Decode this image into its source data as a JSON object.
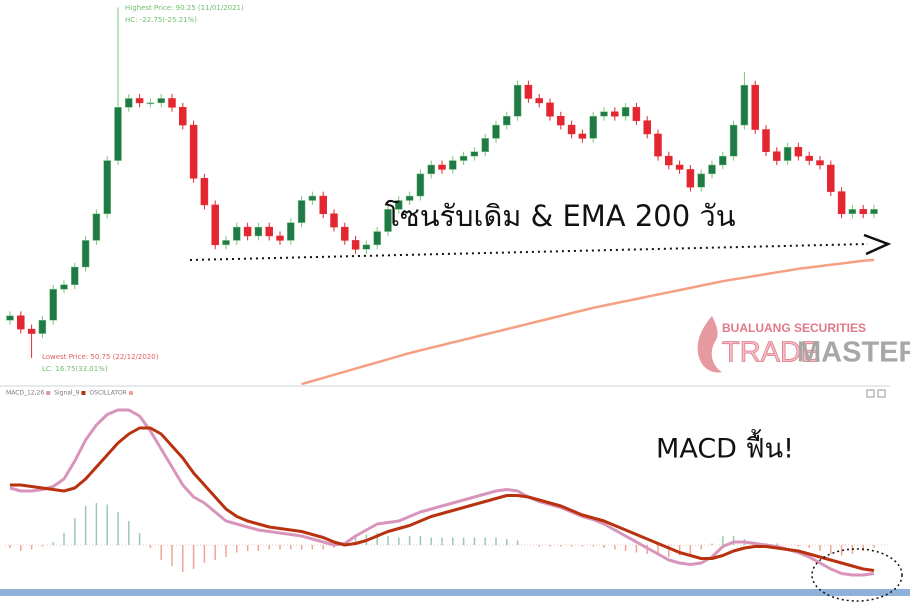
{
  "chart_data": [
    {
      "type": "candlestick",
      "open": [
        55.0,
        55.5,
        54.0,
        53.5,
        55.0,
        58.5,
        59.0,
        61.0,
        64.0,
        67.0,
        73.0,
        79.0,
        80.0,
        79.5,
        79.5,
        80.0,
        79.0,
        77.0,
        71.0,
        68.0,
        63.5,
        64.0,
        65.5,
        64.5,
        65.5,
        64.5,
        64.0,
        66.0,
        68.5,
        69.0,
        67.0,
        65.5,
        64.0,
        63.0,
        63.5,
        65.0,
        67.5,
        68.5,
        69.0,
        71.5,
        72.5,
        72.0,
        73.0,
        73.5,
        74.0,
        75.5,
        77.0,
        78.0,
        81.5,
        80.0,
        79.5,
        78.0,
        77.0,
        76.0,
        75.5,
        78.0,
        78.5,
        78.0,
        79.0,
        77.5,
        76.0,
        73.5,
        72.5,
        72.0,
        70.0,
        71.5,
        72.5,
        73.5,
        77.0,
        81.5,
        76.5,
        74.0,
        73.0,
        74.5,
        73.5,
        73.0,
        72.5,
        69.5,
        67.0,
        67.5,
        67.0
      ],
      "high": [
        56.0,
        56.0,
        54.5,
        55.5,
        59.0,
        59.5,
        61.5,
        64.5,
        67.5,
        73.5,
        90.25,
        80.5,
        80.5,
        80.0,
        80.5,
        80.5,
        79.5,
        77.5,
        71.5,
        68.5,
        64.5,
        66.0,
        66.0,
        66.0,
        66.0,
        65.0,
        66.5,
        69.0,
        69.5,
        69.5,
        67.5,
        66.0,
        64.5,
        64.0,
        65.5,
        68.0,
        69.0,
        69.5,
        72.0,
        73.0,
        73.0,
        73.5,
        74.0,
        74.5,
        76.0,
        77.5,
        78.5,
        82.0,
        82.0,
        80.5,
        80.0,
        78.5,
        77.5,
        76.5,
        78.5,
        79.0,
        79.0,
        79.5,
        79.5,
        78.0,
        76.5,
        74.0,
        73.0,
        72.5,
        72.0,
        73.0,
        74.0,
        77.5,
        83.0,
        82.0,
        77.0,
        74.5,
        75.0,
        75.0,
        74.0,
        73.5,
        73.0,
        70.0,
        68.0,
        68.0,
        68.0
      ],
      "low": [
        54.5,
        53.5,
        50.75,
        53.0,
        54.5,
        58.0,
        58.5,
        60.5,
        63.5,
        66.5,
        72.5,
        78.5,
        79.0,
        79.0,
        79.0,
        78.5,
        76.5,
        70.5,
        67.5,
        63.0,
        63.0,
        63.5,
        64.0,
        64.0,
        64.0,
        63.5,
        63.5,
        65.5,
        68.0,
        66.5,
        65.0,
        63.5,
        62.5,
        62.5,
        63.0,
        64.5,
        67.0,
        68.0,
        68.5,
        71.0,
        71.5,
        71.5,
        72.5,
        73.0,
        73.5,
        75.0,
        76.5,
        77.5,
        79.5,
        79.0,
        77.5,
        76.5,
        75.5,
        75.0,
        75.0,
        77.5,
        77.5,
        77.5,
        77.0,
        75.5,
        73.0,
        72.0,
        71.5,
        69.5,
        69.5,
        71.0,
        72.0,
        73.0,
        76.5,
        76.0,
        73.5,
        72.5,
        72.5,
        73.0,
        72.5,
        72.0,
        69.0,
        66.5,
        66.5,
        66.5,
        66.5
      ],
      "close": [
        55.5,
        54.0,
        53.5,
        55.0,
        58.5,
        59.0,
        61.0,
        64.0,
        67.0,
        73.0,
        79.0,
        80.0,
        79.5,
        79.5,
        80.0,
        79.0,
        77.0,
        71.0,
        68.0,
        63.5,
        64.0,
        65.5,
        64.5,
        65.5,
        64.5,
        64.0,
        66.0,
        68.5,
        69.0,
        67.0,
        65.5,
        64.0,
        63.0,
        63.5,
        65.0,
        67.5,
        68.5,
        69.0,
        71.5,
        72.5,
        72.0,
        73.0,
        73.5,
        74.0,
        75.5,
        77.0,
        78.0,
        81.5,
        80.0,
        79.5,
        78.0,
        77.0,
        76.0,
        75.5,
        78.0,
        78.5,
        78.0,
        79.0,
        77.5,
        76.0,
        73.5,
        72.5,
        72.0,
        70.0,
        71.5,
        72.5,
        73.5,
        77.0,
        81.5,
        76.5,
        74.0,
        73.0,
        74.5,
        73.5,
        73.0,
        72.5,
        69.5,
        67.0,
        67.5,
        67.0,
        67.5
      ],
      "up_color": "#1f7a48",
      "down_color": "#e3262f",
      "ema": {
        "color": "#f5a083",
        "values": [
          null,
          null,
          null,
          null,
          null,
          null,
          null,
          null,
          null,
          null,
          null,
          null,
          null,
          null,
          null,
          null,
          null,
          null,
          null,
          null,
          null,
          null,
          null,
          null,
          null,
          null,
          null,
          47.8,
          48.15,
          48.5,
          48.85,
          49.2,
          49.55,
          49.9,
          50.25,
          50.6,
          50.95,
          51.3,
          51.6,
          51.9,
          52.2,
          52.5,
          52.8,
          53.1,
          53.4,
          53.7,
          54.0,
          54.3,
          54.6,
          54.9,
          55.2,
          55.5,
          55.8,
          56.1,
          56.4,
          56.65,
          56.9,
          57.15,
          57.4,
          57.65,
          57.9,
          58.15,
          58.4,
          58.65,
          58.9,
          59.15,
          59.4,
          59.6,
          59.8,
          60.0,
          60.2,
          60.4,
          60.6,
          60.8,
          60.95,
          61.1,
          61.25,
          61.4,
          61.55,
          61.7,
          61.8
        ]
      },
      "ylim": [
        47.7,
        91.1
      ],
      "annotations": {
        "high": "Highest Price: 90.25 (11/01/2021)",
        "hc": "HC: -22.75(-25.21%)",
        "low": "Lowest Price: 50.75 (22/12/2020)",
        "lc": "LC: 16.75(33.01%)",
        "zone": "โซนรับเดิม & EMA 200 วัน"
      },
      "logo": {
        "company": "BUALUANG SECURITIES",
        "brand_1": "TRADE",
        "brand_2": "MASTER"
      }
    },
    {
      "type": "macd",
      "labels": [
        "MACD_12,26",
        "Signal_9",
        "OSCILLATOR"
      ],
      "macd": {
        "color": "#d994bb",
        "values": [
          1.9,
          1.8,
          1.8,
          1.85,
          1.95,
          2.2,
          2.8,
          3.5,
          4.0,
          4.35,
          4.5,
          4.5,
          4.3,
          3.8,
          3.2,
          2.6,
          2.0,
          1.6,
          1.4,
          1.1,
          0.8,
          0.7,
          0.6,
          0.5,
          0.45,
          0.4,
          0.35,
          0.3,
          0.2,
          0.1,
          0.0,
          0.05,
          0.3,
          0.5,
          0.7,
          0.75,
          0.8,
          0.95,
          1.1,
          1.2,
          1.3,
          1.4,
          1.5,
          1.6,
          1.7,
          1.8,
          1.85,
          1.8,
          1.6,
          1.45,
          1.35,
          1.25,
          1.1,
          0.95,
          0.85,
          0.7,
          0.5,
          0.3,
          0.1,
          -0.1,
          -0.3,
          -0.5,
          -0.6,
          -0.65,
          -0.6,
          -0.4,
          -0.05,
          0.1,
          0.1,
          0.05,
          0.0,
          -0.05,
          -0.15,
          -0.25,
          -0.4,
          -0.6,
          -0.8,
          -0.95,
          -1.0,
          -1.0,
          -0.95
        ]
      },
      "signal": {
        "color": "#b8320f",
        "values": [
          2.0,
          2.0,
          1.95,
          1.9,
          1.85,
          1.8,
          1.9,
          2.2,
          2.6,
          3.0,
          3.4,
          3.7,
          3.9,
          3.9,
          3.7,
          3.3,
          2.9,
          2.4,
          2.0,
          1.6,
          1.2,
          0.95,
          0.8,
          0.7,
          0.6,
          0.55,
          0.5,
          0.45,
          0.35,
          0.25,
          0.1,
          0.0,
          0.05,
          0.15,
          0.3,
          0.45,
          0.55,
          0.65,
          0.8,
          0.95,
          1.05,
          1.15,
          1.25,
          1.35,
          1.45,
          1.55,
          1.65,
          1.65,
          1.6,
          1.5,
          1.4,
          1.3,
          1.15,
          1.0,
          0.9,
          0.8,
          0.65,
          0.5,
          0.35,
          0.2,
          0.05,
          -0.1,
          -0.25,
          -0.35,
          -0.45,
          -0.45,
          -0.35,
          -0.2,
          -0.1,
          -0.05,
          -0.05,
          -0.1,
          -0.15,
          -0.2,
          -0.3,
          -0.4,
          -0.5,
          -0.6,
          -0.7,
          -0.8,
          -0.85
        ]
      },
      "oscillator": {
        "up_color": "#9cc8b0",
        "down_color": "#f0a594",
        "values": [
          -0.1,
          -0.2,
          -0.15,
          -0.05,
          0.1,
          0.4,
          0.9,
          1.3,
          1.4,
          1.35,
          1.1,
          0.8,
          0.4,
          -0.1,
          -0.5,
          -0.7,
          -0.9,
          -0.8,
          -0.6,
          -0.5,
          -0.4,
          -0.25,
          -0.2,
          -0.2,
          -0.15,
          -0.15,
          -0.15,
          -0.15,
          -0.15,
          -0.15,
          -0.1,
          0.05,
          0.25,
          0.35,
          0.4,
          0.3,
          0.25,
          0.3,
          0.3,
          0.25,
          0.25,
          0.25,
          0.25,
          0.25,
          0.25,
          0.25,
          0.2,
          0.15,
          0.0,
          -0.05,
          -0.05,
          -0.05,
          -0.05,
          -0.05,
          -0.05,
          -0.1,
          -0.15,
          -0.2,
          -0.25,
          -0.3,
          -0.35,
          -0.4,
          -0.35,
          -0.3,
          -0.15,
          0.05,
          0.3,
          0.3,
          0.2,
          0.1,
          0.05,
          0.05,
          0.0,
          -0.05,
          -0.1,
          -0.2,
          -0.3,
          -0.35,
          -0.3,
          -0.2,
          -0.1
        ]
      },
      "ylim": [
        -1.5,
        5.0
      ],
      "annotation": "MACD ฟื้น!"
    }
  ]
}
